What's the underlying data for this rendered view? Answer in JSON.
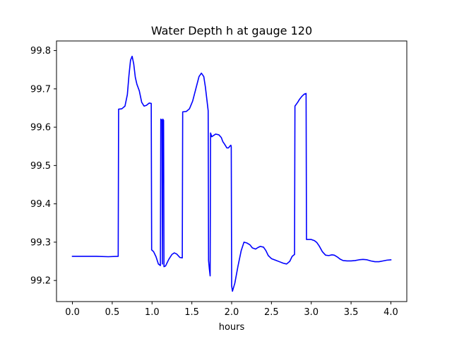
{
  "chart_data": {
    "type": "line",
    "title": "Water Depth h at gauge 120",
    "xlabel": "hours",
    "ylabel": "",
    "xlim": [
      -0.2,
      4.2
    ],
    "ylim": [
      99.145,
      99.825
    ],
    "xticks": [
      0.0,
      0.5,
      1.0,
      1.5,
      2.0,
      2.5,
      3.0,
      3.5,
      4.0
    ],
    "xtick_labels": [
      "0.0",
      "0.5",
      "1.0",
      "1.5",
      "2.0",
      "2.5",
      "3.0",
      "3.5",
      "4.0"
    ],
    "yticks": [
      99.2,
      99.3,
      99.4,
      99.5,
      99.6,
      99.7,
      99.8
    ],
    "ytick_labels": [
      "99.2",
      "99.3",
      "99.4",
      "99.5",
      "99.6",
      "99.7",
      "99.8"
    ],
    "grid": false,
    "legend": "none",
    "series": [
      {
        "color": "#0000ff",
        "points": [
          [
            0.0,
            99.263
          ],
          [
            0.3,
            99.263
          ],
          [
            0.45,
            99.262
          ],
          [
            0.575,
            99.263
          ],
          [
            0.58,
            99.647
          ],
          [
            0.62,
            99.648
          ],
          [
            0.66,
            99.655
          ],
          [
            0.69,
            99.685
          ],
          [
            0.71,
            99.735
          ],
          [
            0.73,
            99.775
          ],
          [
            0.75,
            99.785
          ],
          [
            0.77,
            99.765
          ],
          [
            0.79,
            99.73
          ],
          [
            0.81,
            99.712
          ],
          [
            0.84,
            99.695
          ],
          [
            0.87,
            99.665
          ],
          [
            0.9,
            99.655
          ],
          [
            0.93,
            99.657
          ],
          [
            0.965,
            99.663
          ],
          [
            0.99,
            99.662
          ],
          [
            0.995,
            99.28
          ],
          [
            1.02,
            99.275
          ],
          [
            1.05,
            99.262
          ],
          [
            1.08,
            99.243
          ],
          [
            1.105,
            99.239
          ],
          [
            1.11,
            99.621
          ],
          [
            1.125,
            99.618
          ],
          [
            1.13,
            99.243
          ],
          [
            1.135,
            99.621
          ],
          [
            1.145,
            99.618
          ],
          [
            1.15,
            99.236
          ],
          [
            1.17,
            99.238
          ],
          [
            1.21,
            99.255
          ],
          [
            1.25,
            99.268
          ],
          [
            1.28,
            99.272
          ],
          [
            1.31,
            99.269
          ],
          [
            1.35,
            99.26
          ],
          [
            1.38,
            99.259
          ],
          [
            1.385,
            99.64
          ],
          [
            1.43,
            99.641
          ],
          [
            1.47,
            99.648
          ],
          [
            1.51,
            99.668
          ],
          [
            1.55,
            99.7
          ],
          [
            1.59,
            99.732
          ],
          [
            1.62,
            99.741
          ],
          [
            1.65,
            99.732
          ],
          [
            1.67,
            99.705
          ],
          [
            1.69,
            99.67
          ],
          [
            1.705,
            99.643
          ],
          [
            1.71,
            99.252
          ],
          [
            1.72,
            99.23
          ],
          [
            1.73,
            99.212
          ],
          [
            1.735,
            99.585
          ],
          [
            1.75,
            99.575
          ],
          [
            1.77,
            99.578
          ],
          [
            1.8,
            99.582
          ],
          [
            1.84,
            99.58
          ],
          [
            1.87,
            99.573
          ],
          [
            1.89,
            99.562
          ],
          [
            1.91,
            99.556
          ],
          [
            1.94,
            99.546
          ],
          [
            1.96,
            99.546
          ],
          [
            1.98,
            99.551
          ],
          [
            1.99,
            99.553
          ],
          [
            1.995,
            99.549
          ],
          [
            2.0,
            99.186
          ],
          [
            2.01,
            99.172
          ],
          [
            2.04,
            99.193
          ],
          [
            2.08,
            99.238
          ],
          [
            2.12,
            99.278
          ],
          [
            2.155,
            99.3
          ],
          [
            2.19,
            99.298
          ],
          [
            2.23,
            99.293
          ],
          [
            2.26,
            99.285
          ],
          [
            2.3,
            99.282
          ],
          [
            2.33,
            99.286
          ],
          [
            2.36,
            99.289
          ],
          [
            2.4,
            99.287
          ],
          [
            2.43,
            99.278
          ],
          [
            2.46,
            99.265
          ],
          [
            2.5,
            99.257
          ],
          [
            2.55,
            99.253
          ],
          [
            2.6,
            99.249
          ],
          [
            2.65,
            99.245
          ],
          [
            2.69,
            99.243
          ],
          [
            2.73,
            99.25
          ],
          [
            2.76,
            99.263
          ],
          [
            2.79,
            99.268
          ],
          [
            2.795,
            99.655
          ],
          [
            2.83,
            99.665
          ],
          [
            2.85,
            99.672
          ],
          [
            2.88,
            99.68
          ],
          [
            2.91,
            99.686
          ],
          [
            2.935,
            99.688
          ],
          [
            2.94,
            99.307
          ],
          [
            2.97,
            99.307
          ],
          [
            3.0,
            99.307
          ],
          [
            3.04,
            99.304
          ],
          [
            3.07,
            99.299
          ],
          [
            3.1,
            99.29
          ],
          [
            3.14,
            99.275
          ],
          [
            3.18,
            99.266
          ],
          [
            3.22,
            99.265
          ],
          [
            3.26,
            99.267
          ],
          [
            3.29,
            99.266
          ],
          [
            3.33,
            99.261
          ],
          [
            3.36,
            99.256
          ],
          [
            3.4,
            99.252
          ],
          [
            3.45,
            99.251
          ],
          [
            3.5,
            99.251
          ],
          [
            3.55,
            99.252
          ],
          [
            3.6,
            99.254
          ],
          [
            3.65,
            99.255
          ],
          [
            3.7,
            99.254
          ],
          [
            3.75,
            99.251
          ],
          [
            3.8,
            99.249
          ],
          [
            3.85,
            99.249
          ],
          [
            3.9,
            99.251
          ],
          [
            3.95,
            99.253
          ],
          [
            4.0,
            99.254
          ]
        ]
      }
    ]
  }
}
